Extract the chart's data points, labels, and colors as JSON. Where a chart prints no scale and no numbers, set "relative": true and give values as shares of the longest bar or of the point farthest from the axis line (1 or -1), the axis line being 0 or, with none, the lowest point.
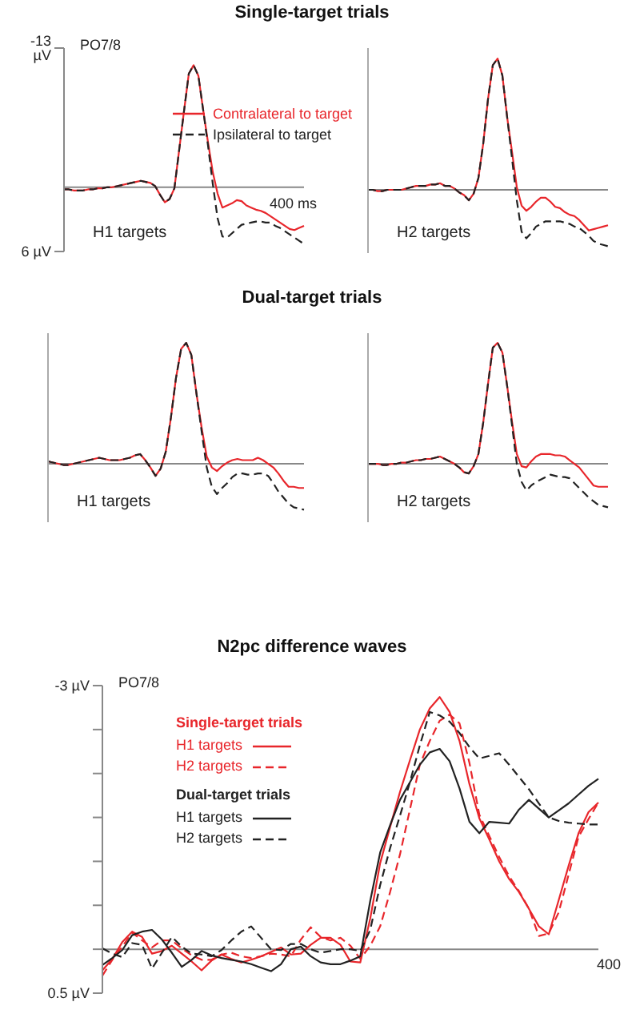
{
  "chart_data": [
    {
      "type": "line",
      "title": "Single-target trials",
      "categories": [
        null,
        null,
        null,
        null,
        null,
        null,
        null,
        null,
        null,
        null,
        null,
        null,
        null,
        null,
        null,
        null,
        null,
        null,
        null,
        null,
        null,
        null,
        null,
        null,
        null,
        null,
        null,
        null,
        null,
        null,
        null,
        null,
        null,
        null,
        null,
        null,
        null,
        null,
        null,
        null,
        null,
        null,
        null,
        null,
        null,
        null,
        null,
        null,
        null,
        null,
        null
      ],
      "ylim": [
        6,
        -13
      ],
      "yticks": [
        {
          "value": -13,
          "label": "-13 µV"
        },
        {
          "value": 6,
          "label": "6 µV"
        }
      ],
      "tick_labels": "y",
      "annotations": [
        "PO7/8",
        "H1 targets",
        "400 ms"
      ],
      "legend": "top right",
      "series": [
        {
          "name": "Contralateral to target",
          "color": "#e8262b",
          "line_style": "solid",
          "values": [
            0.2,
            0.2,
            0.3,
            0.3,
            0.3,
            0.2,
            0.2,
            0.1,
            0.1,
            0,
            0,
            -0.1,
            -0.2,
            -0.3,
            -0.4,
            -0.5,
            -0.6,
            -0.5,
            -0.4,
            -0.1,
            0.7,
            1.4,
            1.1,
            0.1,
            -3.5,
            -7.1,
            -10.6,
            -11.4,
            -10.4,
            -7.2,
            -4.2,
            -1.4,
            0.6,
            1.9,
            1.7,
            1.5,
            1.2,
            1.3,
            1.7,
            1.9,
            2.1,
            2.2,
            2.4,
            2.7,
            3.0,
            3.3,
            3.6,
            3.9,
            4.0,
            3.8,
            3.6
          ]
        },
        {
          "name": "Ipsilateral to target",
          "color": "#222222",
          "line_style": "dashed",
          "values": [
            0.2,
            0.2,
            0.3,
            0.3,
            0.3,
            0.2,
            0.2,
            0.1,
            0.1,
            0,
            0,
            -0.1,
            -0.2,
            -0.3,
            -0.4,
            -0.5,
            -0.6,
            -0.5,
            -0.4,
            -0.1,
            0.7,
            1.4,
            1.1,
            0.1,
            -3.5,
            -7.1,
            -10.6,
            -11.4,
            -10.4,
            -7.2,
            -3.9,
            -0.3,
            2.9,
            4.6,
            4.7,
            4.3,
            3.9,
            3.5,
            3.4,
            3.3,
            3.2,
            3.2,
            3.3,
            3.3,
            3.6,
            3.8,
            4.1,
            4.4,
            4.7,
            5.0,
            5.3
          ]
        }
      ]
    },
    {
      "type": "line",
      "relative": true,
      "categories": [
        null,
        null,
        null,
        null,
        null,
        null,
        null,
        null,
        null,
        null,
        null,
        null,
        null,
        null,
        null,
        null,
        null,
        null,
        null,
        null,
        null,
        null,
        null,
        null,
        null,
        null,
        null,
        null,
        null,
        null,
        null,
        null,
        null,
        null,
        null,
        null,
        null,
        null,
        null,
        null,
        null,
        null,
        null,
        null,
        null,
        null,
        null,
        null,
        null,
        null,
        null
      ],
      "annotations": [
        "H2 targets"
      ],
      "series": [
        {
          "color": "#e8262b",
          "line_style": "solid",
          "values": [
            0,
            0,
            -0.01,
            -0.01,
            0,
            0,
            0,
            0,
            0.01,
            0.02,
            0.03,
            0.03,
            0.03,
            0.04,
            0.04,
            0.05,
            0.03,
            0.03,
            0.01,
            -0.02,
            -0.04,
            -0.08,
            -0.03,
            0.09,
            0.35,
            0.69,
            0.95,
            1,
            0.87,
            0.55,
            0.29,
            0.02,
            -0.12,
            -0.16,
            -0.13,
            -0.09,
            -0.06,
            -0.06,
            -0.09,
            -0.13,
            -0.14,
            -0.17,
            -0.19,
            -0.2,
            -0.23,
            -0.27,
            -0.31,
            -0.3,
            -0.29,
            -0.28,
            -0.27
          ]
        },
        {
          "color": "#222222",
          "line_style": "dashed",
          "values": [
            0,
            0,
            -0.01,
            -0.01,
            0,
            0,
            0,
            0,
            0.01,
            0.02,
            0.03,
            0.03,
            0.03,
            0.04,
            0.04,
            0.05,
            0.03,
            0.03,
            0.01,
            -0.02,
            -0.04,
            -0.08,
            -0.03,
            0.09,
            0.35,
            0.69,
            0.95,
            1,
            0.87,
            0.55,
            0.24,
            -0.08,
            -0.32,
            -0.37,
            -0.33,
            -0.28,
            -0.26,
            -0.24,
            -0.24,
            -0.24,
            -0.24,
            -0.25,
            -0.26,
            -0.28,
            -0.29,
            -0.32,
            -0.35,
            -0.39,
            -0.41,
            -0.42,
            -0.43
          ]
        }
      ]
    },
    {
      "type": "line",
      "title": "Dual-target trials",
      "relative": true,
      "categories": [
        null,
        null,
        null,
        null,
        null,
        null,
        null,
        null,
        null,
        null,
        null,
        null,
        null,
        null,
        null,
        null,
        null,
        null,
        null,
        null,
        null,
        null,
        null,
        null,
        null,
        null,
        null,
        null,
        null,
        null,
        null,
        null,
        null,
        null,
        null,
        null,
        null,
        null,
        null,
        null,
        null,
        null,
        null,
        null,
        null,
        null,
        null,
        null,
        null,
        null,
        null
      ],
      "annotations": [
        "H1 targets"
      ],
      "series": [
        {
          "color": "#e8262b",
          "line_style": "solid",
          "values": [
            0.02,
            0.01,
            0,
            -0.01,
            -0.01,
            0,
            0.01,
            0.02,
            0.03,
            0.04,
            0.05,
            0.04,
            0.03,
            0.03,
            0.03,
            0.04,
            0.05,
            0.07,
            0.08,
            0.03,
            -0.03,
            -0.1,
            -0.04,
            0.1,
            0.38,
            0.71,
            0.95,
            1,
            0.9,
            0.58,
            0.3,
            0.06,
            -0.03,
            -0.06,
            -0.02,
            0.01,
            0.03,
            0.04,
            0.03,
            0.03,
            0.03,
            0.05,
            0.03,
            0,
            -0.03,
            -0.08,
            -0.14,
            -0.19,
            -0.19,
            -0.2,
            -0.2
          ]
        },
        {
          "color": "#222222",
          "line_style": "dashed",
          "values": [
            0.02,
            0.01,
            0,
            -0.01,
            -0.01,
            0,
            0.01,
            0.02,
            0.03,
            0.04,
            0.05,
            0.04,
            0.03,
            0.03,
            0.03,
            0.04,
            0.05,
            0.07,
            0.08,
            0.03,
            -0.03,
            -0.1,
            -0.04,
            0.1,
            0.38,
            0.71,
            0.95,
            1,
            0.9,
            0.58,
            0.27,
            -0.03,
            -0.19,
            -0.25,
            -0.2,
            -0.16,
            -0.11,
            -0.08,
            -0.08,
            -0.09,
            -0.09,
            -0.08,
            -0.08,
            -0.1,
            -0.16,
            -0.23,
            -0.28,
            -0.33,
            -0.36,
            -0.37,
            -0.38
          ]
        }
      ]
    },
    {
      "type": "line",
      "relative": true,
      "categories": [
        null,
        null,
        null,
        null,
        null,
        null,
        null,
        null,
        null,
        null,
        null,
        null,
        null,
        null,
        null,
        null,
        null,
        null,
        null,
        null,
        null,
        null,
        null,
        null,
        null,
        null,
        null,
        null,
        null,
        null,
        null,
        null,
        null,
        null,
        null,
        null,
        null,
        null,
        null,
        null,
        null,
        null,
        null,
        null,
        null,
        null,
        null,
        null,
        null,
        null,
        null
      ],
      "annotations": [
        "H2 targets"
      ],
      "series": [
        {
          "color": "#e8262b",
          "line_style": "solid",
          "values": [
            0,
            0,
            0,
            -0.01,
            -0.01,
            0,
            0,
            0.01,
            0.01,
            0.02,
            0.03,
            0.03,
            0.04,
            0.04,
            0.05,
            0.06,
            0.04,
            0.02,
            0,
            -0.03,
            -0.07,
            -0.08,
            -0.02,
            0.08,
            0.34,
            0.66,
            0.96,
            1,
            0.92,
            0.64,
            0.35,
            0.08,
            -0.02,
            -0.03,
            0.02,
            0.06,
            0.08,
            0.08,
            0.08,
            0.07,
            0.07,
            0.06,
            0.03,
            0,
            -0.03,
            -0.08,
            -0.13,
            -0.18,
            -0.19,
            -0.19,
            -0.19
          ]
        },
        {
          "color": "#222222",
          "line_style": "dashed",
          "values": [
            0,
            0,
            0,
            -0.01,
            -0.01,
            0,
            0,
            0.01,
            0.01,
            0.02,
            0.03,
            0.03,
            0.04,
            0.04,
            0.05,
            0.06,
            0.04,
            0.02,
            0,
            -0.03,
            -0.07,
            -0.08,
            -0.02,
            0.08,
            0.34,
            0.66,
            0.96,
            1,
            0.92,
            0.64,
            0.32,
            0,
            -0.15,
            -0.22,
            -0.18,
            -0.15,
            -0.13,
            -0.11,
            -0.09,
            -0.1,
            -0.11,
            -0.11,
            -0.12,
            -0.16,
            -0.2,
            -0.24,
            -0.28,
            -0.31,
            -0.34,
            -0.35,
            -0.36
          ]
        }
      ]
    },
    {
      "type": "line",
      "title": "N2pc difference waves",
      "categories": [
        null,
        null,
        null,
        null,
        null,
        null,
        null,
        null,
        null,
        null,
        null,
        null,
        null,
        null,
        null,
        null,
        null,
        null,
        null,
        null,
        null,
        null,
        null,
        null,
        null,
        null,
        null,
        null,
        null,
        null,
        null,
        null,
        null,
        null,
        null,
        null,
        null,
        null,
        null,
        null,
        null,
        null,
        null,
        null,
        null,
        null,
        null,
        null,
        null,
        null,
        null
      ],
      "ylim": [
        0.5,
        -3
      ],
      "yticks": [
        {
          "value": -3,
          "label": "-3 µV"
        },
        {
          "value": -2.5,
          "label": null
        },
        {
          "value": -2,
          "label": null
        },
        {
          "value": -1.5,
          "label": null
        },
        {
          "value": -1,
          "label": null
        },
        {
          "value": -0.5,
          "label": null
        },
        {
          "value": 0,
          "label": null
        },
        {
          "value": 0.5,
          "label": "0.5 µV"
        }
      ],
      "tick_labels": "y",
      "annotations": [
        "PO7/8",
        "Single-target trials",
        "Dual-target trials",
        "400"
      ],
      "legend": "left",
      "series": [
        {
          "name": "H1 targets",
          "color": "#e8262b",
          "line_style": "solid",
          "values": [
            0.24,
            0.11,
            -0.08,
            -0.2,
            -0.14,
            0.05,
            0.02,
            -0.04,
            0.05,
            0.14,
            0.24,
            0.13,
            0.06,
            0.11,
            0.15,
            0.12,
            0.08,
            0.03,
            -0.02,
            0.06,
            0.05,
            -0.05,
            -0.13,
            -0.13,
            -0.05,
            0.14,
            0.15,
            -0.35,
            -0.98,
            -1.39,
            -1.79,
            -2.15,
            -2.5,
            -2.74,
            -2.87,
            -2.7,
            -2.37,
            -1.88,
            -1.49,
            -1.25,
            -1.0,
            -0.8,
            -0.65,
            -0.46,
            -0.26,
            -0.17,
            -0.56,
            -0.95,
            -1.32,
            -1.56,
            -1.67
          ]
        },
        {
          "name": "H2 targets",
          "color": "#e8262b",
          "line_style": "dashed",
          "values": [
            0.3,
            0.12,
            -0.03,
            -0.19,
            -0.1,
            -0.02,
            -0.1,
            -0.1,
            -0.01,
            0.07,
            0.12,
            0.12,
            0.06,
            0.04,
            0.08,
            0.1,
            0.08,
            0.05,
            0.06,
            0.08,
            -0.11,
            -0.25,
            -0.14,
            -0.1,
            -0.13,
            -0.04,
            0.11,
            -0.04,
            -0.26,
            -0.65,
            -1.08,
            -1.59,
            -2.1,
            -2.37,
            -2.6,
            -2.67,
            -2.57,
            -2.12,
            -1.53,
            -1.29,
            -1.05,
            -0.83,
            -0.66,
            -0.46,
            -0.15,
            -0.18,
            -0.42,
            -0.85,
            -1.28,
            -1.48,
            -1.67
          ]
        },
        {
          "name": "H1 targets",
          "color": "#222222",
          "line_style": "solid",
          "values": [
            0.18,
            0.1,
            0.01,
            -0.16,
            -0.2,
            -0.22,
            -0.11,
            0.04,
            0.2,
            0.12,
            0.02,
            0.07,
            0.1,
            0.12,
            0.14,
            0.17,
            0.21,
            0.25,
            0.17,
            0,
            -0.03,
            0.08,
            0.15,
            0.17,
            0.17,
            0.13,
            0.08,
            -0.55,
            -1.1,
            -1.41,
            -1.7,
            -1.9,
            -2.1,
            -2.24,
            -2.28,
            -2.14,
            -1.83,
            -1.45,
            -1.32,
            -1.45,
            -1.44,
            -1.43,
            -1.59,
            -1.7,
            -1.6,
            -1.5,
            -1.58,
            -1.66,
            -1.76,
            -1.86,
            -1.94
          ]
        },
        {
          "name": "H2 targets",
          "color": "#222222",
          "line_style": "dashed",
          "values": [
            -0.01,
            0.05,
            0.09,
            -0.07,
            -0.05,
            0.22,
            0.04,
            -0.14,
            -0.03,
            0.05,
            0.06,
            0.08,
            0.01,
            -0.1,
            -0.2,
            -0.26,
            -0.13,
            0,
            0.01,
            -0.06,
            -0.06,
            0,
            0.04,
            0.02,
            0,
            0,
            0.02,
            -0.22,
            -0.73,
            -1.15,
            -1.52,
            -1.9,
            -2.32,
            -2.7,
            -2.66,
            -2.59,
            -2.46,
            -2.3,
            -2.17,
            -2.2,
            -2.23,
            -2.1,
            -1.96,
            -1.82,
            -1.66,
            -1.5,
            -1.46,
            -1.44,
            -1.43,
            -1.42,
            -1.42
          ]
        }
      ]
    }
  ]
}
